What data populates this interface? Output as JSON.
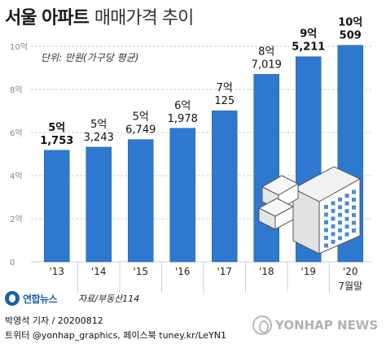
{
  "title": {
    "main": "서울 아파트",
    "sub": "매매가격 추이"
  },
  "unit_note": "단위: 만원(가구당 평균)",
  "chart_data": {
    "type": "bar",
    "categories": [
      "'13",
      "'14",
      "'15",
      "'16",
      "'17",
      "'18",
      "'19",
      "'20"
    ],
    "category_sublabels": [
      "",
      "",
      "",
      "",
      "",
      "",
      "",
      "7월말"
    ],
    "values": [
      51753,
      53243,
      56749,
      61978,
      70125,
      87019,
      95211,
      100509
    ],
    "value_labels": [
      {
        "top": "5억",
        "bottom": "1,753"
      },
      {
        "top": "5억",
        "bottom": "3,243"
      },
      {
        "top": "5억",
        "bottom": "6,749"
      },
      {
        "top": "6억",
        "bottom": "1,978"
      },
      {
        "top": "7억",
        "bottom": "125"
      },
      {
        "top": "8억",
        "bottom": "7,019"
      },
      {
        "top": "9억",
        "bottom": "5,211"
      },
      {
        "top": "10억",
        "bottom": "509"
      }
    ],
    "bold_labels": [
      true,
      false,
      false,
      false,
      false,
      false,
      true,
      true
    ],
    "y_ticks": [
      "10억",
      "8억",
      "6억",
      "4억",
      "2억",
      "0"
    ],
    "y_tick_values": [
      100000,
      80000,
      60000,
      40000,
      20000,
      0
    ],
    "ylim": [
      0,
      100000
    ],
    "grid": true,
    "colors": {
      "bar": "#2f78d0",
      "bar_edge": "#1e5fb0",
      "grid": "#c8d0dc",
      "label": "#111111",
      "axis_text": "#888888"
    }
  },
  "footer": {
    "logo": "연합뉴스",
    "source": "자료/부동산114",
    "credit": "박영석 기자 / 20200812",
    "social": "트위터 @yonhap_graphics, 페이스북 tuney.kr/LeYN1",
    "watermark": "YONHAP NEWS"
  }
}
